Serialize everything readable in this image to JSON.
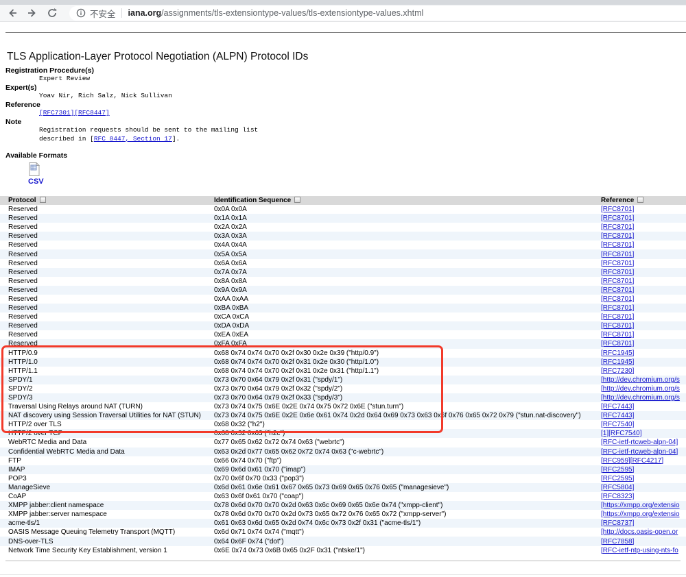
{
  "browser": {
    "icons": {
      "back": "arrow-left",
      "forward": "arrow-right",
      "reload": "circular-arrow",
      "info": "circle-i",
      "sort": "sort-grid",
      "csv": "spreadsheet-file"
    },
    "security_label": "不安全",
    "url_domain": "iana.org",
    "url_path": "/assignments/tls-extensiontype-values/tls-extensiontype-values.xhtml"
  },
  "page": {
    "title": "TLS Application-Layer Protocol Negotiation (ALPN) Protocol IDs",
    "registration_label": "Registration Procedure(s)",
    "registration_value": "Expert Review",
    "experts_label": "Expert(s)",
    "experts_value": "Yoav Nir, Rich Salz, Nick Sullivan",
    "reference_label": "Reference",
    "reference_links": [
      "[RFC7301]",
      "[RFC8447]"
    ],
    "note_label": "Note",
    "note_line1": "Registration requests should be sent to the mailing list",
    "note_line2_prefix": "described in [",
    "note_line2_link": "RFC 8447, Section 17",
    "note_line2_suffix": "].",
    "formats_label": "Available Formats",
    "csv_label": "CSV"
  },
  "annotation": {
    "highlight_color": "#f23a2a"
  },
  "table": {
    "headers": [
      "Protocol",
      "Identification Sequence",
      "Reference"
    ],
    "rows": [
      {
        "protocol": "Reserved",
        "seq": "0x0A 0x0A",
        "refs": [
          "[RFC8701]"
        ]
      },
      {
        "protocol": "Reserved",
        "seq": "0x1A 0x1A",
        "refs": [
          "[RFC8701]"
        ]
      },
      {
        "protocol": "Reserved",
        "seq": "0x2A 0x2A",
        "refs": [
          "[RFC8701]"
        ]
      },
      {
        "protocol": "Reserved",
        "seq": "0x3A 0x3A",
        "refs": [
          "[RFC8701]"
        ]
      },
      {
        "protocol": "Reserved",
        "seq": "0x4A 0x4A",
        "refs": [
          "[RFC8701]"
        ]
      },
      {
        "protocol": "Reserved",
        "seq": "0x5A 0x5A",
        "refs": [
          "[RFC8701]"
        ]
      },
      {
        "protocol": "Reserved",
        "seq": "0x6A 0x6A",
        "refs": [
          "[RFC8701]"
        ]
      },
      {
        "protocol": "Reserved",
        "seq": "0x7A 0x7A",
        "refs": [
          "[RFC8701]"
        ]
      },
      {
        "protocol": "Reserved",
        "seq": "0x8A 0x8A",
        "refs": [
          "[RFC8701]"
        ]
      },
      {
        "protocol": "Reserved",
        "seq": "0x9A 0x9A",
        "refs": [
          "[RFC8701]"
        ]
      },
      {
        "protocol": "Reserved",
        "seq": "0xAA 0xAA",
        "refs": [
          "[RFC8701]"
        ]
      },
      {
        "protocol": "Reserved",
        "seq": "0xBA 0xBA",
        "refs": [
          "[RFC8701]"
        ]
      },
      {
        "protocol": "Reserved",
        "seq": "0xCA 0xCA",
        "refs": [
          "[RFC8701]"
        ]
      },
      {
        "protocol": "Reserved",
        "seq": "0xDA 0xDA",
        "refs": [
          "[RFC8701]"
        ]
      },
      {
        "protocol": "Reserved",
        "seq": "0xEA 0xEA",
        "refs": [
          "[RFC8701]"
        ]
      },
      {
        "protocol": "Reserved",
        "seq": "0xFA 0xFA",
        "refs": [
          "[RFC8701]"
        ]
      },
      {
        "protocol": "HTTP/0.9",
        "seq": "0x68 0x74 0x74 0x70 0x2f 0x30 0x2e 0x39 (\"http/0.9\")",
        "refs": [
          "[RFC1945]"
        ]
      },
      {
        "protocol": "HTTP/1.0",
        "seq": "0x68 0x74 0x74 0x70 0x2f 0x31 0x2e 0x30 (\"http/1.0\")",
        "refs": [
          "[RFC1945]"
        ]
      },
      {
        "protocol": "HTTP/1.1",
        "seq": "0x68 0x74 0x74 0x70 0x2f 0x31 0x2e 0x31 (\"http/1.1\")",
        "refs": [
          "[RFC7230]"
        ]
      },
      {
        "protocol": "SPDY/1",
        "seq": "0x73 0x70 0x64 0x79 0x2f 0x31 (\"spdy/1\")",
        "refs": [
          "[http://dev.chromium.org/s"
        ]
      },
      {
        "protocol": "SPDY/2",
        "seq": "0x73 0x70 0x64 0x79 0x2f 0x32 (\"spdy/2\")",
        "refs": [
          "[http://dev.chromium.org/s"
        ]
      },
      {
        "protocol": "SPDY/3",
        "seq": "0x73 0x70 0x64 0x79 0x2f 0x33 (\"spdy/3\")",
        "refs": [
          "[http://dev.chromium.org/s"
        ]
      },
      {
        "protocol": "Traversal Using Relays around NAT (TURN)",
        "seq": "0x73 0x74 0x75 0x6E 0x2E 0x74 0x75 0x72 0x6E (\"stun.turn\")",
        "refs": [
          "[RFC7443]"
        ]
      },
      {
        "protocol": "NAT discovery using Session Traversal Utilities for NAT (STUN)",
        "seq": "0x73 0x74 0x75 0x6E 0x2E 0x6e 0x61 0x74 0x2d 0x64 0x69 0x73 0x63 0x6f 0x76 0x65 0x72 0x79 (\"stun.nat-discovery\")",
        "refs": [
          "[RFC7443]"
        ]
      },
      {
        "protocol": "HTTP/2 over TLS",
        "seq": "0x68 0x32 (\"h2\")",
        "refs": [
          "[RFC7540]"
        ]
      },
      {
        "protocol": "HTTP/2 over TCP",
        "seq": "0x68 0x32 0x63 (\"h2c\")",
        "refs": [
          "[1]",
          "[RFC7540]"
        ]
      },
      {
        "protocol": "WebRTC Media and Data",
        "seq": "0x77 0x65 0x62 0x72 0x74 0x63 (\"webrtc\")",
        "refs": [
          "[RFC-ietf-rtcweb-alpn-04]"
        ]
      },
      {
        "protocol": "Confidential WebRTC Media and Data",
        "seq": "0x63 0x2d 0x77 0x65 0x62 0x72 0x74 0x63 (\"c-webrtc\")",
        "refs": [
          "[RFC-ietf-rtcweb-alpn-04]"
        ]
      },
      {
        "protocol": "FTP",
        "seq": "0x66 0x74 0x70 (\"ftp\")",
        "refs": [
          "[RFC959]",
          "[RFC4217]"
        ]
      },
      {
        "protocol": "IMAP",
        "seq": "0x69 0x6d 0x61 0x70 (\"imap\")",
        "refs": [
          "[RFC2595]"
        ]
      },
      {
        "protocol": "POP3",
        "seq": "0x70 0x6f 0x70 0x33 (\"pop3\")",
        "refs": [
          "[RFC2595]"
        ]
      },
      {
        "protocol": "ManageSieve",
        "seq": "0x6d 0x61 0x6e 0x61 0x67 0x65 0x73 0x69 0x65 0x76 0x65 (\"managesieve\")",
        "refs": [
          "[RFC5804]"
        ]
      },
      {
        "protocol": "CoAP",
        "seq": "0x63 0x6f 0x61 0x70 (\"coap\")",
        "refs": [
          "[RFC8323]"
        ]
      },
      {
        "protocol": "XMPP jabber:client namespace",
        "seq": "0x78 0x6d 0x70 0x70 0x2d 0x63 0x6c 0x69 0x65 0x6e 0x74 (\"xmpp-client\")",
        "refs": [
          "[https://xmpp.org/extensio"
        ]
      },
      {
        "protocol": "XMPP jabber:server namespace",
        "seq": "0x78 0x6d 0x70 0x70 0x2d 0x73 0x65 0x72 0x76 0x65 0x72 (\"xmpp-server\")",
        "refs": [
          "[https://xmpp.org/extensio"
        ]
      },
      {
        "protocol": "acme-tls/1",
        "seq": "0x61 0x63 0x6d 0x65 0x2d 0x74 0x6c 0x73 0x2f 0x31 (\"acme-tls/1\")",
        "refs": [
          "[RFC8737]"
        ]
      },
      {
        "protocol": "OASIS Message Queuing Telemetry Transport (MQTT)",
        "seq": "0x6d 0x71 0x74 0x74 (\"mqtt\")",
        "refs": [
          "[http://docs.oasis-open.or"
        ]
      },
      {
        "protocol": "DNS-over-TLS",
        "seq": "0x64 0x6F 0x74 (\"dot\")",
        "refs": [
          "[RFC7858]"
        ]
      },
      {
        "protocol": "Network Time Security Key Establishment, version 1",
        "seq": "0x6E 0x74 0x73 0x6B 0x65 0x2F 0x31 (\"ntske/1\")",
        "refs": [
          "[RFC-ietf-ntp-using-nts-fo"
        ]
      }
    ]
  }
}
